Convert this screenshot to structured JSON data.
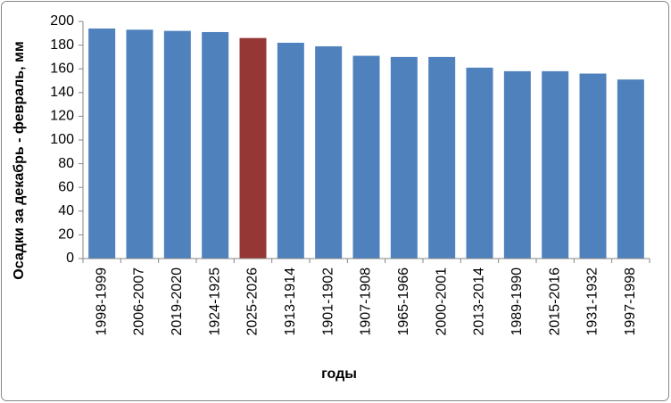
{
  "chart_data": {
    "type": "bar",
    "x_label": "годы",
    "y_label": "Осадки за декабрь - февраль, мм",
    "categories": [
      "1998-1999",
      "2006-2007",
      "2019-2020",
      "1924-1925",
      "2025-2026",
      "1913-1914",
      "1901-1902",
      "1907-1908",
      "1965-1966",
      "2000-2001",
      "2013-2014",
      "1989-1990",
      "2015-2016",
      "1931-1932",
      "1997-1998"
    ],
    "values": [
      194,
      193,
      192,
      191,
      186,
      182,
      179,
      171,
      170,
      170,
      161,
      158,
      158,
      156,
      151
    ],
    "colors": [
      "#4f81bd",
      "#4f81bd",
      "#4f81bd",
      "#4f81bd",
      "#953735",
      "#4f81bd",
      "#4f81bd",
      "#4f81bd",
      "#4f81bd",
      "#4f81bd",
      "#4f81bd",
      "#4f81bd",
      "#4f81bd",
      "#4f81bd",
      "#4f81bd"
    ],
    "ylim": [
      0,
      200
    ],
    "yticks": [
      0,
      20,
      40,
      60,
      80,
      100,
      120,
      140,
      160,
      180,
      200
    ],
    "grid": false
  }
}
